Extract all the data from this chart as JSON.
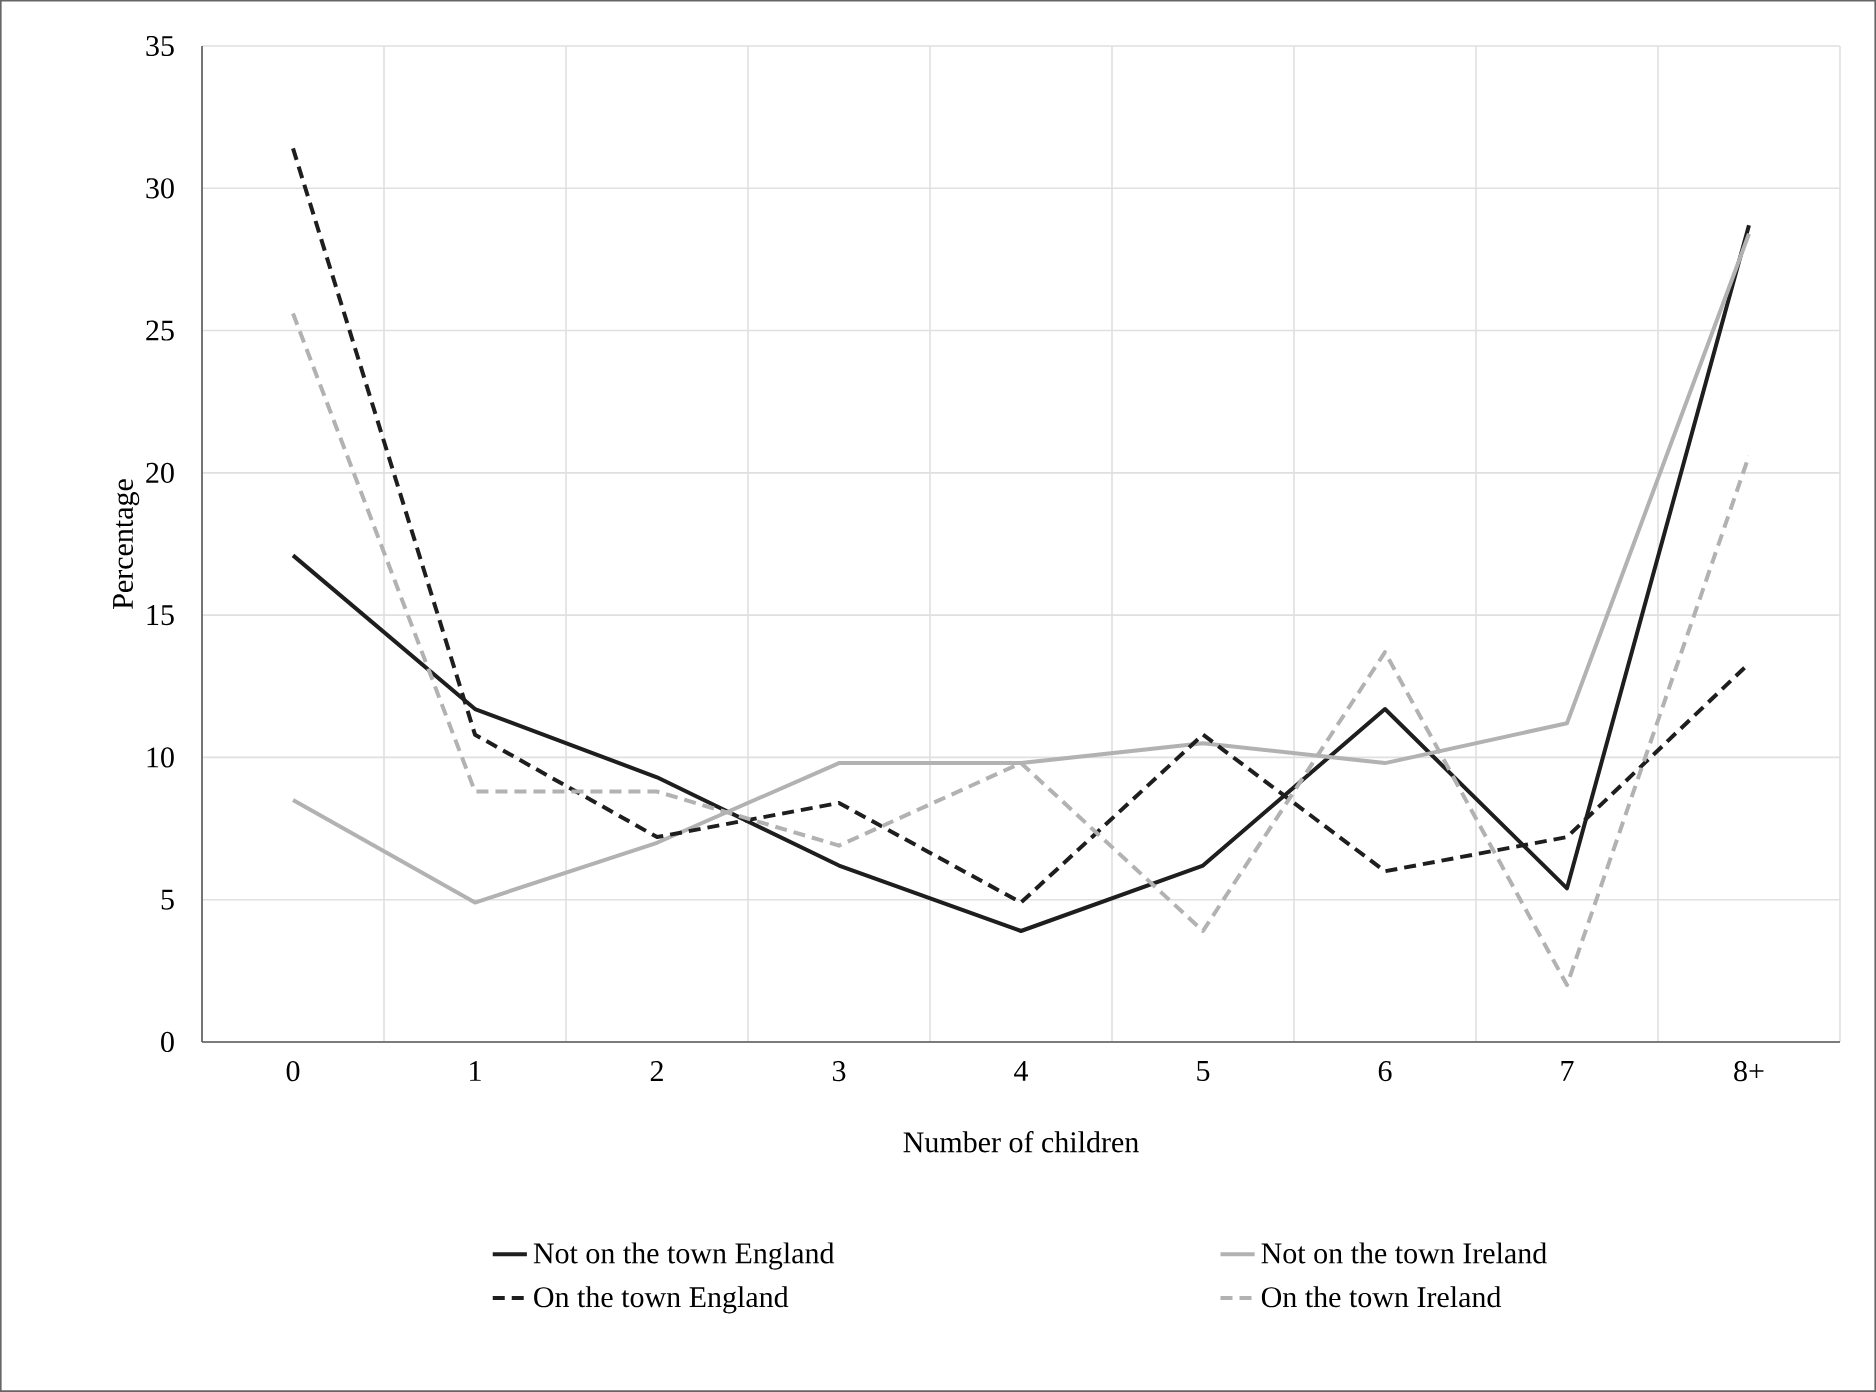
{
  "chart_data": {
    "type": "line",
    "xlabel": "Number of children",
    "ylabel": "Percentage",
    "categories": [
      "0",
      "1",
      "2",
      "3",
      "4",
      "5",
      "6",
      "7",
      "8+"
    ],
    "series": [
      {
        "name": "Not on the town England",
        "color": "#1e1e1e",
        "line_style": "solid",
        "values": [
          17.1,
          11.7,
          9.3,
          6.2,
          3.9,
          6.2,
          11.7,
          5.4,
          28.7
        ]
      },
      {
        "name": "Not on the town Ireland",
        "color": "#b2b2b2",
        "line_style": "solid",
        "values": [
          8.5,
          4.9,
          7.0,
          9.8,
          9.8,
          10.5,
          9.8,
          11.2,
          28.4
        ]
      },
      {
        "name": "On the town England",
        "color": "#1e1e1e",
        "line_style": "dashed",
        "values": [
          31.4,
          10.8,
          7.2,
          8.4,
          4.9,
          10.8,
          6.0,
          7.2,
          13.3
        ]
      },
      {
        "name": "On the town Ireland",
        "color": "#b2b2b2",
        "line_style": "dashed",
        "values": [
          25.6,
          8.8,
          8.8,
          6.9,
          9.8,
          3.9,
          13.7,
          2.0,
          20.6
        ]
      }
    ],
    "ylim": [
      0,
      35
    ],
    "yticks": [
      0,
      5,
      10,
      15,
      20,
      25,
      30,
      35
    ],
    "grid": true,
    "legend": "bottom",
    "marker": "none"
  }
}
